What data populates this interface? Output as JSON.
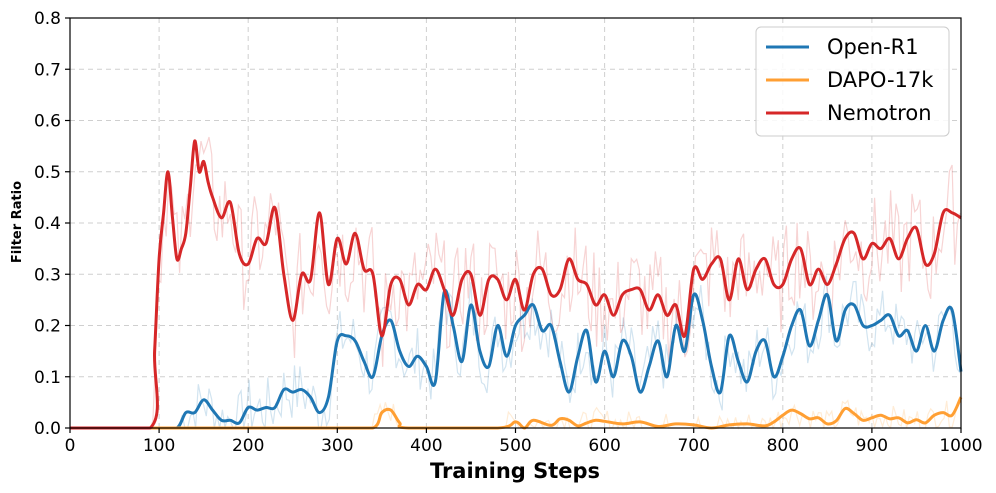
{
  "chart_data": {
    "type": "line",
    "title": "",
    "xlabel": "Training Steps",
    "ylabel": "Filter Ratio",
    "xlim": [
      0,
      1000
    ],
    "ylim": [
      0,
      0.8
    ],
    "xticks": [
      0,
      100,
      200,
      300,
      400,
      500,
      600,
      700,
      800,
      900,
      1000
    ],
    "yticks": [
      0.0,
      0.1,
      0.2,
      0.3,
      0.4,
      0.5,
      0.6,
      0.7,
      0.8
    ],
    "xtick_labels": [
      "0",
      "100",
      "200",
      "300",
      "400",
      "500",
      "600",
      "700",
      "800",
      "900",
      "1000"
    ],
    "ytick_labels": [
      "0.0",
      "0.1",
      "0.2",
      "0.3",
      "0.4",
      "0.5",
      "0.6",
      "0.7",
      "0.8"
    ],
    "grid": true,
    "legend_position": "top-right",
    "series": [
      {
        "name": "Open-R1",
        "color": "#1f77b4",
        "x": [
          0,
          100,
          120,
          130,
          140,
          150,
          160,
          170,
          180,
          190,
          200,
          210,
          220,
          230,
          240,
          250,
          260,
          270,
          280,
          290,
          300,
          310,
          320,
          330,
          340,
          350,
          360,
          370,
          380,
          390,
          400,
          410,
          420,
          430,
          440,
          450,
          460,
          470,
          480,
          490,
          500,
          510,
          520,
          530,
          540,
          550,
          560,
          570,
          580,
          590,
          600,
          610,
          620,
          630,
          640,
          650,
          660,
          670,
          680,
          690,
          700,
          710,
          720,
          730,
          740,
          750,
          760,
          770,
          780,
          790,
          800,
          810,
          820,
          830,
          840,
          850,
          860,
          870,
          880,
          890,
          900,
          910,
          920,
          930,
          940,
          950,
          960,
          970,
          980,
          990,
          1000
        ],
        "values": [
          0.0,
          0.0,
          0.0,
          0.03,
          0.03,
          0.055,
          0.035,
          0.015,
          0.015,
          0.01,
          0.04,
          0.035,
          0.04,
          0.04,
          0.075,
          0.07,
          0.075,
          0.06,
          0.03,
          0.06,
          0.17,
          0.18,
          0.17,
          0.13,
          0.1,
          0.18,
          0.21,
          0.15,
          0.12,
          0.14,
          0.12,
          0.09,
          0.265,
          0.2,
          0.13,
          0.24,
          0.15,
          0.12,
          0.2,
          0.14,
          0.2,
          0.22,
          0.24,
          0.19,
          0.2,
          0.13,
          0.07,
          0.14,
          0.19,
          0.09,
          0.15,
          0.1,
          0.17,
          0.14,
          0.07,
          0.12,
          0.17,
          0.1,
          0.2,
          0.15,
          0.26,
          0.21,
          0.12,
          0.07,
          0.18,
          0.13,
          0.09,
          0.15,
          0.17,
          0.1,
          0.14,
          0.2,
          0.23,
          0.16,
          0.21,
          0.26,
          0.17,
          0.23,
          0.24,
          0.2,
          0.2,
          0.21,
          0.22,
          0.18,
          0.19,
          0.15,
          0.2,
          0.15,
          0.21,
          0.23,
          0.11
        ]
      },
      {
        "name": "DAPO-17k",
        "color": "#ff9f33",
        "x": [
          0,
          100,
          200,
          300,
          340,
          350,
          360,
          370,
          380,
          480,
          500,
          510,
          520,
          540,
          550,
          560,
          570,
          580,
          590,
          600,
          620,
          640,
          660,
          680,
          700,
          720,
          740,
          760,
          780,
          790,
          800,
          810,
          820,
          830,
          840,
          850,
          860,
          870,
          880,
          890,
          900,
          910,
          920,
          930,
          940,
          950,
          960,
          970,
          980,
          990,
          1000
        ],
        "values": [
          0.0,
          0.0,
          0.0,
          0.0,
          0.0,
          0.03,
          0.035,
          0.01,
          0.0,
          0.0,
          0.012,
          0.0,
          0.015,
          0.005,
          0.018,
          0.015,
          0.004,
          0.01,
          0.015,
          0.013,
          0.008,
          0.012,
          0.003,
          0.008,
          0.006,
          0.0,
          0.006,
          0.008,
          0.004,
          0.012,
          0.025,
          0.035,
          0.028,
          0.018,
          0.02,
          0.008,
          0.014,
          0.038,
          0.028,
          0.015,
          0.02,
          0.025,
          0.018,
          0.02,
          0.01,
          0.016,
          0.01,
          0.025,
          0.03,
          0.025,
          0.06
        ]
      },
      {
        "name": "Nemotron",
        "color": "#d62728",
        "x": [
          0,
          90,
          95,
          100,
          105,
          110,
          115,
          120,
          125,
          130,
          135,
          140,
          145,
          150,
          155,
          160,
          170,
          180,
          190,
          200,
          210,
          220,
          230,
          240,
          250,
          260,
          270,
          280,
          290,
          300,
          310,
          320,
          330,
          340,
          350,
          360,
          370,
          380,
          390,
          400,
          410,
          420,
          430,
          440,
          450,
          460,
          470,
          480,
          490,
          500,
          510,
          520,
          530,
          540,
          550,
          560,
          570,
          580,
          590,
          600,
          610,
          620,
          630,
          640,
          650,
          660,
          670,
          680,
          690,
          700,
          710,
          720,
          730,
          740,
          750,
          760,
          770,
          780,
          790,
          800,
          810,
          820,
          830,
          840,
          850,
          860,
          870,
          880,
          890,
          900,
          910,
          920,
          930,
          940,
          950,
          960,
          970,
          980,
          990,
          1000
        ],
        "values": [
          0.0,
          0.0,
          0.15,
          0.33,
          0.42,
          0.5,
          0.41,
          0.33,
          0.35,
          0.38,
          0.47,
          0.56,
          0.5,
          0.52,
          0.48,
          0.45,
          0.41,
          0.44,
          0.34,
          0.32,
          0.37,
          0.36,
          0.43,
          0.3,
          0.21,
          0.3,
          0.29,
          0.42,
          0.28,
          0.37,
          0.32,
          0.38,
          0.31,
          0.3,
          0.18,
          0.28,
          0.29,
          0.24,
          0.28,
          0.27,
          0.31,
          0.27,
          0.22,
          0.29,
          0.3,
          0.22,
          0.29,
          0.29,
          0.25,
          0.29,
          0.23,
          0.3,
          0.31,
          0.26,
          0.27,
          0.33,
          0.29,
          0.28,
          0.24,
          0.26,
          0.22,
          0.26,
          0.27,
          0.27,
          0.23,
          0.26,
          0.22,
          0.24,
          0.18,
          0.31,
          0.29,
          0.32,
          0.33,
          0.25,
          0.33,
          0.27,
          0.31,
          0.33,
          0.28,
          0.28,
          0.33,
          0.35,
          0.28,
          0.31,
          0.28,
          0.32,
          0.37,
          0.38,
          0.33,
          0.36,
          0.35,
          0.37,
          0.33,
          0.37,
          0.39,
          0.32,
          0.34,
          0.42,
          0.42,
          0.41
        ]
      }
    ]
  }
}
